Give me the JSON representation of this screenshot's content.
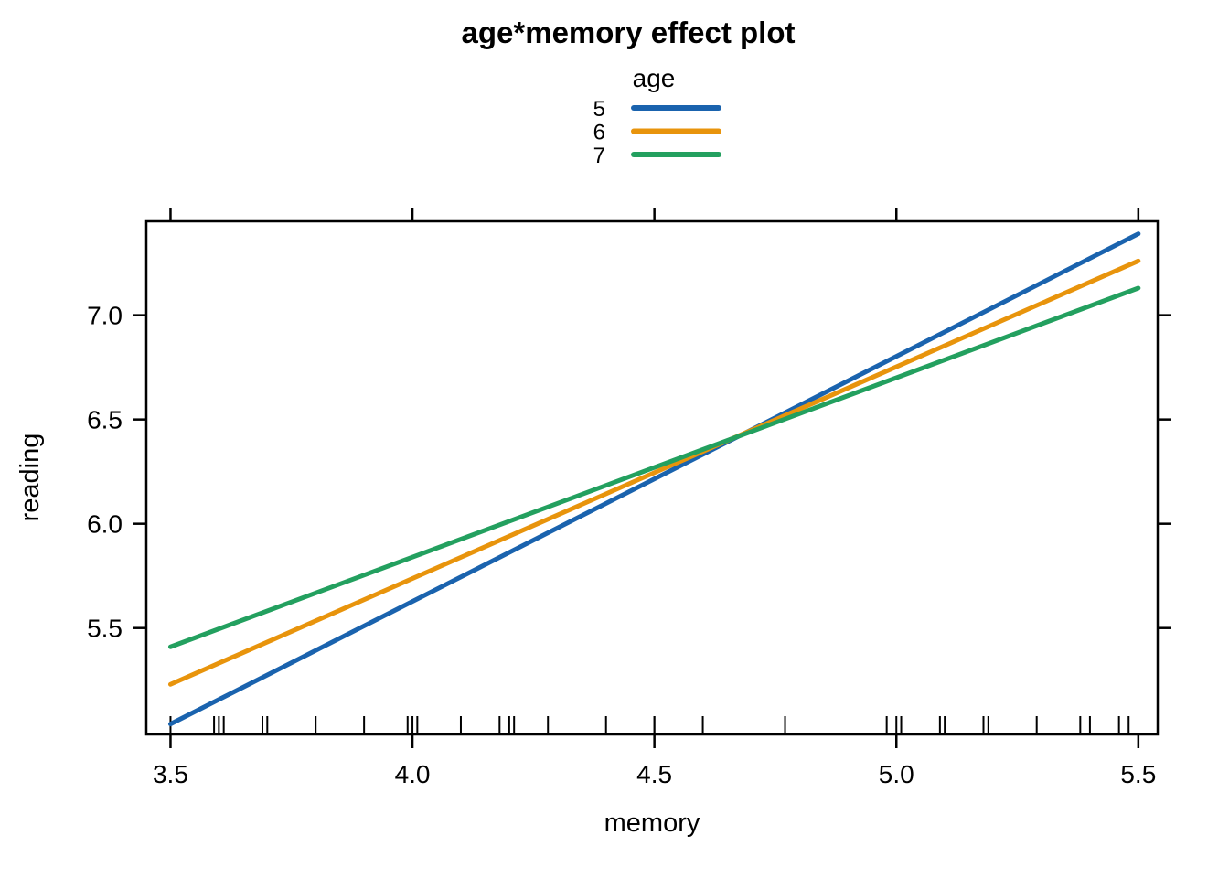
{
  "chart_data": {
    "type": "line",
    "title": "age*memory effect plot",
    "xlabel": "memory",
    "ylabel": "reading",
    "xlim": [
      3.45,
      5.54
    ],
    "ylim": [
      4.99,
      7.45
    ],
    "xticks": [
      3.5,
      4.0,
      4.5,
      5.0,
      5.5
    ],
    "yticks": [
      5.5,
      6.0,
      6.5,
      7.0
    ],
    "grid": false,
    "background_color": "#ffffff",
    "axis_color": "#000000",
    "legend": {
      "title": "age",
      "position": "top-center"
    },
    "series": [
      {
        "name": "5",
        "color": "#1a63ae",
        "x": [
          3.5,
          5.5
        ],
        "y": [
          5.04,
          7.39
        ]
      },
      {
        "name": "6",
        "color": "#e8940c",
        "x": [
          3.5,
          5.5
        ],
        "y": [
          5.23,
          7.26
        ]
      },
      {
        "name": "7",
        "color": "#23a05f",
        "x": [
          3.5,
          5.5
        ],
        "y": [
          5.41,
          7.13
        ]
      }
    ],
    "rug_x": [
      3.5,
      3.59,
      3.6,
      3.61,
      3.69,
      3.7,
      3.8,
      3.9,
      3.99,
      4.0,
      4.01,
      4.1,
      4.18,
      4.2,
      4.21,
      4.28,
      4.4,
      4.5,
      4.5,
      4.6,
      4.77,
      4.98,
      5.0,
      5.01,
      5.09,
      5.1,
      5.18,
      5.19,
      5.29,
      5.38,
      5.4,
      5.46,
      5.48
    ]
  }
}
